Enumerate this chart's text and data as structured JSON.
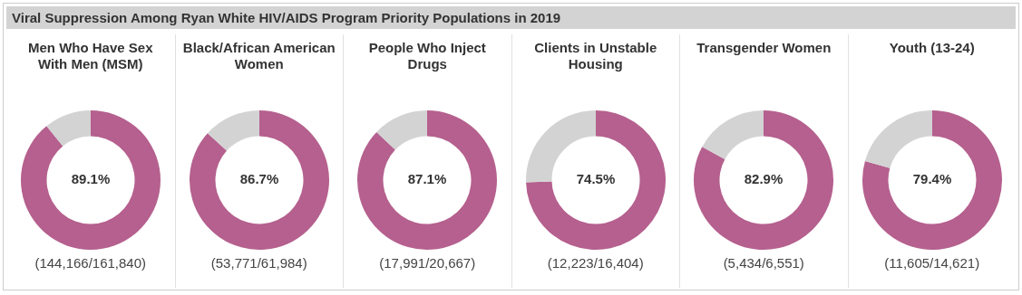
{
  "chart_data": [
    {
      "type": "other",
      "title": "Viral Suppression Among Ryan White HIV/AIDS Program Priority Populations in 2019"
    },
    {
      "type": "donut",
      "title": "Men Who Have Sex With Men (MSM)",
      "categories": [
        null,
        null
      ],
      "values": [
        89.1,
        10.9
      ],
      "colors": [
        "#b5608e",
        "#d3d3d3"
      ],
      "value_labels": [
        "89.1%",
        null
      ],
      "annotations": [
        "(144,166/161,840)"
      ]
    },
    {
      "type": "donut",
      "title": "Black/African American Women",
      "categories": [
        null,
        null
      ],
      "values": [
        86.7,
        13.3
      ],
      "colors": [
        "#b5608e",
        "#d3d3d3"
      ],
      "value_labels": [
        "86.7%",
        null
      ],
      "annotations": [
        "(53,771/61,984)"
      ]
    },
    {
      "type": "donut",
      "title": "People Who Inject Drugs",
      "categories": [
        null,
        null
      ],
      "values": [
        87.1,
        12.9
      ],
      "colors": [
        "#b5608e",
        "#d3d3d3"
      ],
      "value_labels": [
        "87.1%",
        null
      ],
      "annotations": [
        "(17,991/20,667)"
      ]
    },
    {
      "type": "donut",
      "title": "Clients in Unstable Housing",
      "categories": [
        null,
        null
      ],
      "values": [
        74.5,
        25.5
      ],
      "colors": [
        "#b5608e",
        "#d3d3d3"
      ],
      "value_labels": [
        "74.5%",
        null
      ],
      "annotations": [
        "(12,223/16,404)"
      ]
    },
    {
      "type": "donut",
      "title": "Transgender Women",
      "categories": [
        null,
        null
      ],
      "values": [
        82.9,
        17.1
      ],
      "colors": [
        "#b5608e",
        "#d3d3d3"
      ],
      "value_labels": [
        "82.9%",
        null
      ],
      "annotations": [
        "(5,434/6,551)"
      ]
    },
    {
      "type": "donut",
      "title": "Youth (13-24)",
      "categories": [
        null,
        null
      ],
      "values": [
        79.4,
        20.6
      ],
      "colors": [
        "#b5608e",
        "#d3d3d3"
      ],
      "value_labels": [
        "79.4%",
        null
      ],
      "annotations": [
        "(11,605/14,621)"
      ]
    }
  ]
}
